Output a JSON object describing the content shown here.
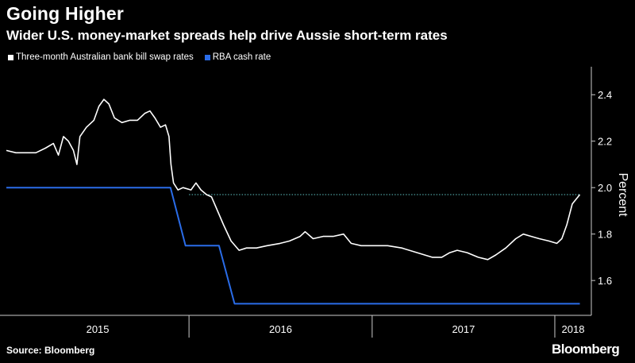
{
  "header": {
    "title": "Going Higher",
    "subtitle": "Wider U.S. money-market spreads help drive Aussie short-term rates"
  },
  "footer": {
    "source": "Source: Bloomberg",
    "brand": "Bloomberg"
  },
  "colors": {
    "background": "#000000",
    "swap_series": "#ffffff",
    "cash_series": "#2a6ce8",
    "reference_line": "#5fc4c4",
    "axis": "#cccccc"
  },
  "chart_data": {
    "type": "line",
    "title": "Going Higher",
    "subtitle": "Wider U.S. money-market spreads help drive Aussie short-term rates",
    "ylabel": "Percent",
    "ylim": [
      1.45,
      2.5
    ],
    "xlim": [
      "2015-01-01",
      "2018-03-15"
    ],
    "yticks": [
      1.6,
      1.8,
      2.0,
      2.2,
      2.4
    ],
    "x_tick_labels": [
      "2015",
      "2016",
      "2017",
      "2018"
    ],
    "x_year_boundaries": [
      "2016-01-01",
      "2017-01-01",
      "2018-01-01"
    ],
    "legend_position": "top-left",
    "grid": false,
    "reference_line": {
      "y": 1.97,
      "from": "2016-01-01",
      "to": "2018-02-20",
      "style": "dotted"
    },
    "series": [
      {
        "name": "Three-month Australian bank bill swap rates",
        "color": "#ffffff",
        "points": [
          [
            "2015-01-01",
            2.16
          ],
          [
            "2015-01-20",
            2.15
          ],
          [
            "2015-02-10",
            2.15
          ],
          [
            "2015-03-01",
            2.15
          ],
          [
            "2015-03-20",
            2.17
          ],
          [
            "2015-04-05",
            2.19
          ],
          [
            "2015-04-15",
            2.14
          ],
          [
            "2015-04-25",
            2.22
          ],
          [
            "2015-05-05",
            2.2
          ],
          [
            "2015-05-15",
            2.16
          ],
          [
            "2015-05-22",
            2.1
          ],
          [
            "2015-05-28",
            2.22
          ],
          [
            "2015-06-10",
            2.26
          ],
          [
            "2015-06-25",
            2.29
          ],
          [
            "2015-07-05",
            2.35
          ],
          [
            "2015-07-15",
            2.38
          ],
          [
            "2015-07-25",
            2.36
          ],
          [
            "2015-08-05",
            2.3
          ],
          [
            "2015-08-20",
            2.28
          ],
          [
            "2015-09-05",
            2.29
          ],
          [
            "2015-09-20",
            2.29
          ],
          [
            "2015-10-05",
            2.32
          ],
          [
            "2015-10-15",
            2.33
          ],
          [
            "2015-10-25",
            2.3
          ],
          [
            "2015-11-05",
            2.26
          ],
          [
            "2015-11-15",
            2.27
          ],
          [
            "2015-11-22",
            2.22
          ],
          [
            "2015-11-26",
            2.1
          ],
          [
            "2015-12-01",
            2.02
          ],
          [
            "2015-12-10",
            1.99
          ],
          [
            "2015-12-20",
            2.0
          ],
          [
            "2016-01-05",
            1.99
          ],
          [
            "2016-01-15",
            2.02
          ],
          [
            "2016-01-25",
            1.99
          ],
          [
            "2016-02-05",
            1.97
          ],
          [
            "2016-02-15",
            1.96
          ],
          [
            "2016-02-25",
            1.91
          ],
          [
            "2016-03-10",
            1.84
          ],
          [
            "2016-03-25",
            1.77
          ],
          [
            "2016-04-10",
            1.73
          ],
          [
            "2016-04-25",
            1.74
          ],
          [
            "2016-05-15",
            1.74
          ],
          [
            "2016-06-05",
            1.75
          ],
          [
            "2016-07-01",
            1.76
          ],
          [
            "2016-07-20",
            1.77
          ],
          [
            "2016-08-10",
            1.79
          ],
          [
            "2016-08-20",
            1.81
          ],
          [
            "2016-09-05",
            1.78
          ],
          [
            "2016-09-25",
            1.79
          ],
          [
            "2016-10-15",
            1.79
          ],
          [
            "2016-11-05",
            1.8
          ],
          [
            "2016-11-20",
            1.76
          ],
          [
            "2016-12-10",
            1.75
          ],
          [
            "2017-01-01",
            1.75
          ],
          [
            "2017-02-01",
            1.75
          ],
          [
            "2017-03-01",
            1.74
          ],
          [
            "2017-04-01",
            1.72
          ],
          [
            "2017-05-01",
            1.7
          ],
          [
            "2017-05-20",
            1.7
          ],
          [
            "2017-06-05",
            1.72
          ],
          [
            "2017-06-20",
            1.73
          ],
          [
            "2017-07-10",
            1.72
          ],
          [
            "2017-08-01",
            1.7
          ],
          [
            "2017-08-20",
            1.69
          ],
          [
            "2017-09-05",
            1.71
          ],
          [
            "2017-09-25",
            1.74
          ],
          [
            "2017-10-15",
            1.78
          ],
          [
            "2017-10-30",
            1.8
          ],
          [
            "2017-11-15",
            1.79
          ],
          [
            "2017-12-01",
            1.78
          ],
          [
            "2017-12-20",
            1.77
          ],
          [
            "2018-01-05",
            1.76
          ],
          [
            "2018-01-15",
            1.78
          ],
          [
            "2018-01-25",
            1.84
          ],
          [
            "2018-02-05",
            1.93
          ],
          [
            "2018-02-20",
            1.97
          ]
        ]
      },
      {
        "name": "RBA cash rate",
        "color": "#2a6ce8",
        "points": [
          [
            "2015-01-01",
            2.0
          ],
          [
            "2015-11-25",
            2.0
          ],
          [
            "2015-12-25",
            1.75
          ],
          [
            "2016-03-01",
            1.75
          ],
          [
            "2016-04-01",
            1.5
          ],
          [
            "2018-02-20",
            1.5
          ]
        ]
      }
    ]
  }
}
